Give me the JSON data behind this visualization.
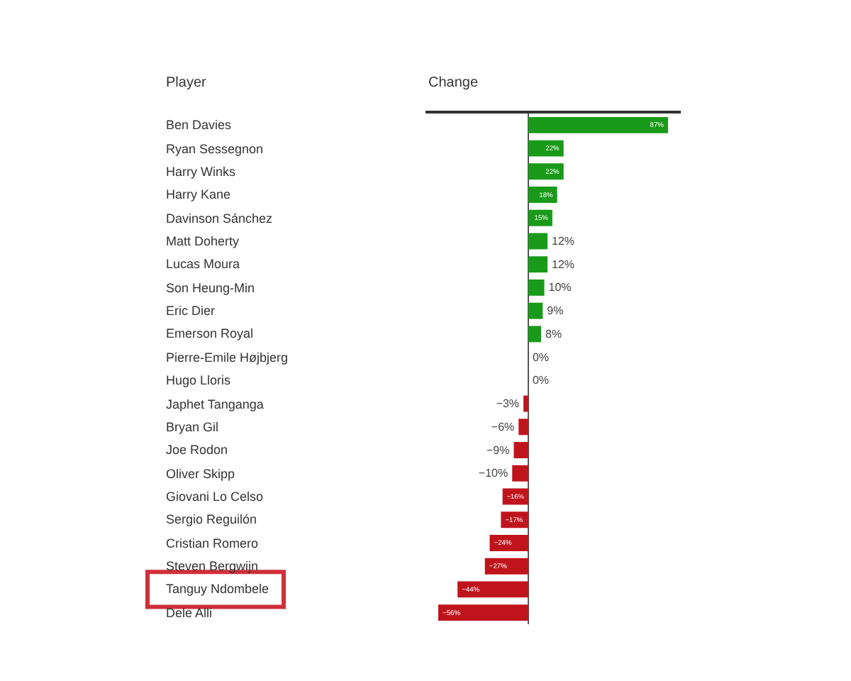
{
  "chart_data": {
    "type": "bar",
    "orientation": "horizontal",
    "ylabel": "Player",
    "xlabel": "Change",
    "categories": [
      "Ben Davies",
      "Ryan Sessegnon",
      "Harry Winks",
      "Harry Kane",
      "Davinson Sánchez",
      "Matt Doherty",
      "Lucas Moura",
      "Son Heung-Min",
      "Eric Dier",
      "Emerson Royal",
      "Pierre-Emile Højbjerg",
      "Hugo Lloris",
      "Japhet Tanganga",
      "Bryan Gil",
      "Joe Rodon",
      "Oliver Skipp",
      "Giovani Lo Celso",
      "Sergio Reguilón",
      "Cristian Romero",
      "Steven Bergwijn",
      "Tanguy Ndombele",
      "Dele Alli"
    ],
    "values": [
      87,
      22,
      22,
      18,
      15,
      12,
      12,
      10,
      9,
      8,
      0,
      0,
      -3,
      -6,
      -9,
      -10,
      -16,
      -17,
      -24,
      -27,
      -44,
      -56
    ],
    "value_labels": [
      "87%",
      "22%",
      "22%",
      "18%",
      "15%",
      "12%",
      "12%",
      "10%",
      "9%",
      "8%",
      "0%",
      "0%",
      "−3%",
      "−6%",
      "−9%",
      "−10%",
      "−16%",
      "−17%",
      "−24%",
      "−27%",
      "−44%",
      "−56%"
    ],
    "colors": [
      "#1a9a1a",
      "#1a9a1a",
      "#1a9a1a",
      "#1a9a1a",
      "#1a9a1a",
      "#1a9a1a",
      "#1a9a1a",
      "#1a9a1a",
      "#1a9a1a",
      "#1a9a1a",
      "#1a9a1a",
      "#1a9a1a",
      "#c0141c",
      "#c0141c",
      "#c0141c",
      "#c0141c",
      "#c0141c",
      "#c0141c",
      "#c0141c",
      "#c0141c",
      "#c0141c",
      "#c0141c"
    ],
    "legend": false
  }
}
